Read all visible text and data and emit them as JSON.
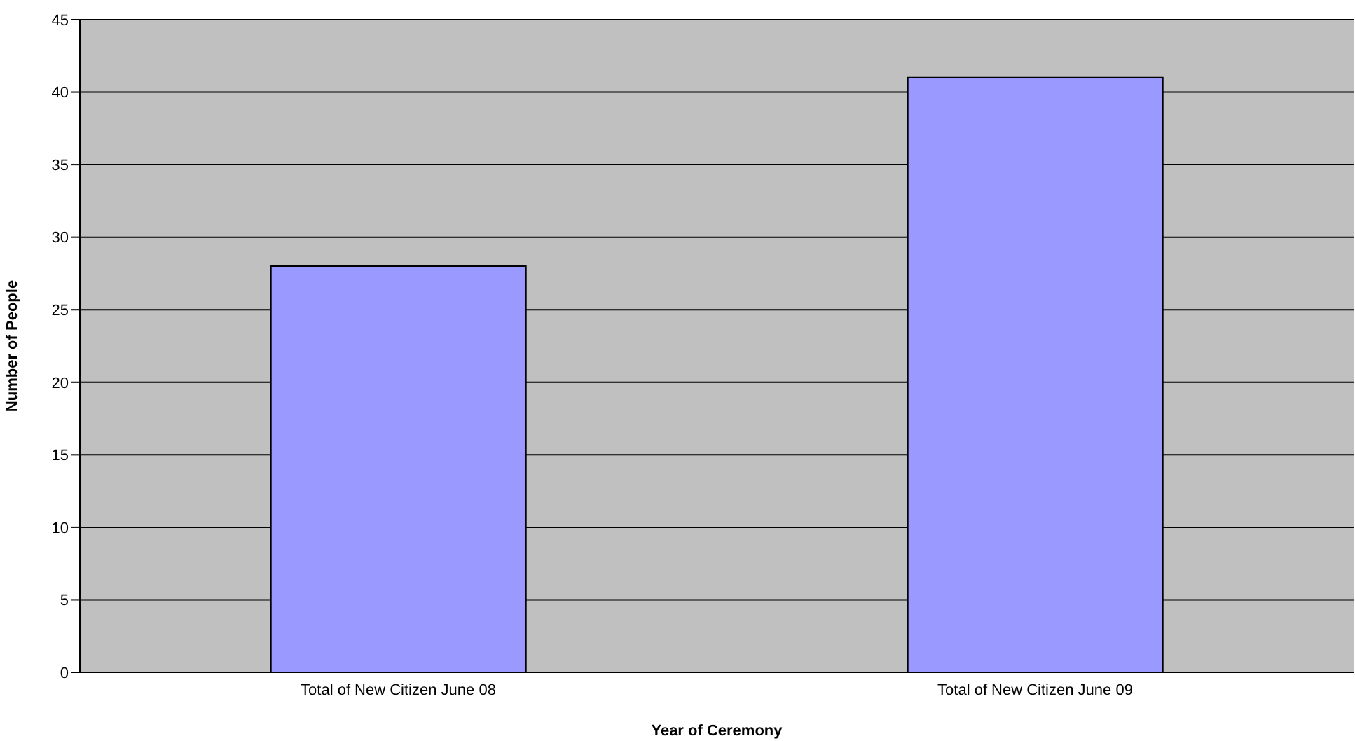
{
  "chart_data": {
    "type": "bar",
    "xlabel": "Year of Ceremony",
    "ylabel": "Number of People",
    "categories": [
      "Total of New Citizen June 08",
      "Total of New Citizen June 09"
    ],
    "values": [
      28,
      41
    ],
    "color": "#9999ff",
    "ylim": [
      0,
      45
    ],
    "yticks": [
      0,
      5,
      10,
      15,
      20,
      25,
      30,
      35,
      40,
      45
    ],
    "grid": "y",
    "legend": false
  }
}
